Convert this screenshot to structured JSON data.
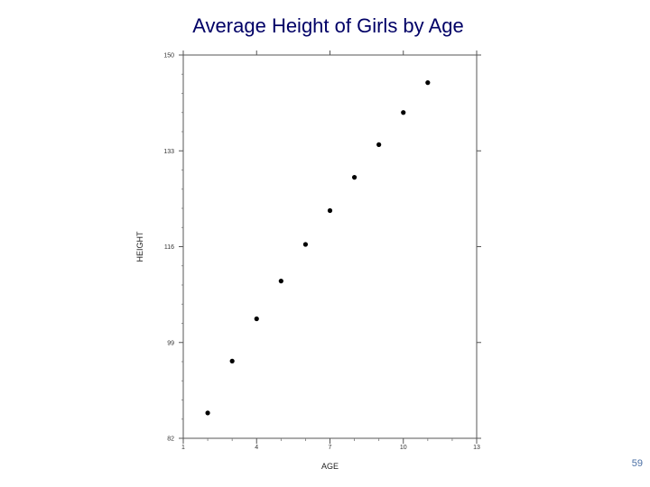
{
  "slide": {
    "title": "Average Height of Girls by Age",
    "page_number": "59"
  },
  "chart_data": {
    "type": "scatter",
    "title": "Average Height of Girls by Age",
    "xlabel": "AGE",
    "ylabel": "HEIGHT",
    "xlim": [
      1,
      13
    ],
    "ylim": [
      82,
      150
    ],
    "xticks": [
      1,
      4,
      7,
      10,
      13
    ],
    "xtick_labels": [
      "1",
      "4",
      "7",
      "10",
      "13"
    ],
    "yticks": [
      82,
      99,
      116,
      133,
      150
    ],
    "ytick_labels": [
      "82",
      "99",
      "116",
      "133",
      "150"
    ],
    "x": [
      2,
      3,
      4,
      5,
      6,
      7,
      8,
      9,
      10,
      11
    ],
    "y": [
      86.5,
      95.7,
      103.2,
      109.9,
      116.4,
      122.4,
      128.3,
      134.1,
      139.8,
      145.1
    ],
    "marker_color": "#000000",
    "grid": false,
    "legend": "none"
  }
}
